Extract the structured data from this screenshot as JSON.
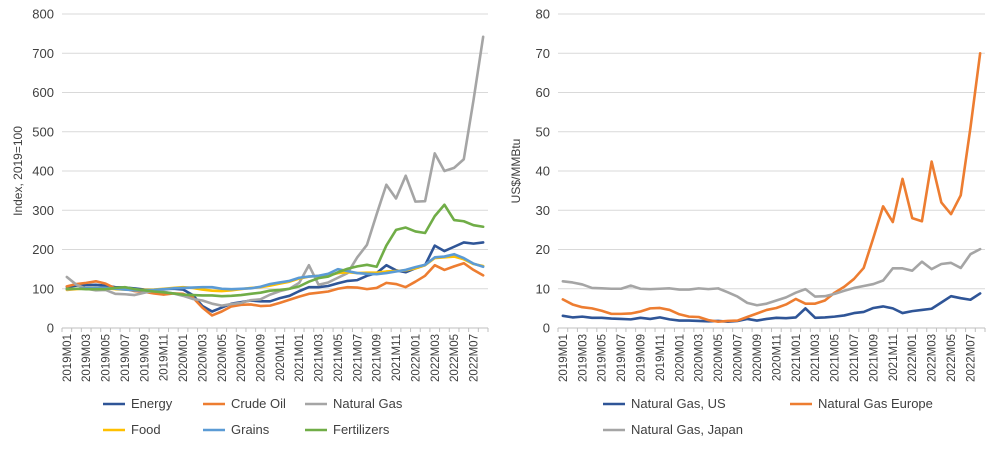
{
  "chart_data": [
    {
      "type": "line",
      "title": "",
      "xlabel": "",
      "ylabel": "Index, 2019=100",
      "ylim": [
        0,
        800
      ],
      "yticks": [
        0,
        100,
        200,
        300,
        400,
        500,
        600,
        700,
        800
      ],
      "grid": "horizontal",
      "legend_position": "bottom",
      "x": [
        "2019M01",
        "2019M02",
        "2019M03",
        "2019M04",
        "2019M05",
        "2019M06",
        "2019M07",
        "2019M08",
        "2019M09",
        "2019M10",
        "2019M11",
        "2019M12",
        "2020M01",
        "2020M02",
        "2020M03",
        "2020M04",
        "2020M05",
        "2020M06",
        "2020M07",
        "2020M08",
        "2020M09",
        "2020M10",
        "2020M11",
        "2020M12",
        "2021M01",
        "2021M02",
        "2021M03",
        "2021M04",
        "2021M05",
        "2021M06",
        "2021M07",
        "2021M08",
        "2021M09",
        "2021M10",
        "2021M11",
        "2021M12",
        "2022M01",
        "2022M02",
        "2022M03",
        "2022M04",
        "2022M05",
        "2022M06",
        "2022M07",
        "2022M08"
      ],
      "x_tick_labels": [
        "2019M01",
        "2019M03",
        "2019M05",
        "2019M07",
        "2019M09",
        "2019M11",
        "2020M01",
        "2020M03",
        "2020M05",
        "2020M07",
        "2020M09",
        "2020M11",
        "2021M01",
        "2021M03",
        "2021M05",
        "2021M07",
        "2021M09",
        "2021M11",
        "2022M01",
        "2022M03",
        "2022M05",
        "2022M07"
      ],
      "series": [
        {
          "name": "Energy",
          "color": "#2f5597",
          "values": [
            105,
            108,
            109,
            110,
            108,
            104,
            103,
            101,
            98,
            97,
            99,
            100,
            98,
            84,
            56,
            42,
            52,
            62,
            66,
            70,
            68,
            68,
            76,
            82,
            94,
            104,
            104,
            107,
            114,
            120,
            122,
            133,
            140,
            160,
            147,
            142,
            152,
            160,
            210,
            196,
            207,
            218,
            215,
            218
          ]
        },
        {
          "name": "Crude Oil",
          "color": "#ed7d31",
          "values": [
            106,
            112,
            115,
            119,
            113,
            101,
            100,
            94,
            92,
            88,
            85,
            88,
            87,
            78,
            52,
            32,
            42,
            55,
            59,
            60,
            56,
            57,
            64,
            72,
            80,
            87,
            90,
            93,
            100,
            104,
            103,
            99,
            102,
            115,
            112,
            104,
            118,
            133,
            160,
            148,
            157,
            165,
            148,
            134
          ]
        },
        {
          "name": "Natural Gas",
          "color": "#a5a5a5",
          "values": [
            130,
            110,
            100,
            96,
            97,
            87,
            86,
            84,
            90,
            95,
            92,
            88,
            82,
            74,
            70,
            62,
            57,
            61,
            64,
            71,
            73,
            85,
            94,
            100,
            115,
            160,
            110,
            116,
            128,
            140,
            180,
            212,
            290,
            365,
            330,
            388,
            322,
            323,
            445,
            400,
            408,
            430,
            580,
            742
          ]
        },
        {
          "name": "Food",
          "color": "#ffc000",
          "values": [
            97,
            99,
            101,
            102,
            101,
            99,
            98,
            97,
            97,
            98,
            100,
            102,
            104,
            102,
            98,
            95,
            94,
            96,
            99,
            102,
            104,
            108,
            113,
            118,
            126,
            131,
            133,
            134,
            140,
            142,
            140,
            141,
            141,
            144,
            145,
            147,
            152,
            160,
            178,
            180,
            182,
            175,
            163,
            158
          ]
        },
        {
          "name": "Grains",
          "color": "#5b9bd5",
          "values": [
            99,
            100,
            101,
            102,
            102,
            100,
            98,
            96,
            96,
            97,
            99,
            101,
            102,
            103,
            104,
            104,
            100,
            99,
            100,
            101,
            105,
            112,
            116,
            120,
            128,
            131,
            133,
            138,
            150,
            145,
            140,
            138,
            137,
            140,
            144,
            148,
            155,
            161,
            180,
            182,
            188,
            178,
            164,
            156
          ]
        },
        {
          "name": "Fertilizers",
          "color": "#70ad47",
          "values": [
            100,
            100,
            99,
            99,
            99,
            102,
            104,
            99,
            96,
            93,
            91,
            88,
            85,
            84,
            83,
            83,
            81,
            82,
            84,
            87,
            90,
            95,
            97,
            100,
            106,
            118,
            127,
            131,
            142,
            151,
            157,
            161,
            156,
            210,
            250,
            256,
            246,
            242,
            285,
            314,
            275,
            272,
            262,
            258
          ]
        }
      ]
    },
    {
      "type": "line",
      "title": "",
      "xlabel": "",
      "ylabel": "US$/MMBtu",
      "ylim": [
        0,
        80
      ],
      "yticks": [
        0,
        10,
        20,
        30,
        40,
        50,
        60,
        70,
        80
      ],
      "grid": "horizontal",
      "legend_position": "bottom",
      "x": [
        "2019M01",
        "2019M02",
        "2019M03",
        "2019M04",
        "2019M05",
        "2019M06",
        "2019M07",
        "2019M08",
        "2019M09",
        "2019M10",
        "2019M11",
        "2019M12",
        "2020M01",
        "2020M02",
        "2020M03",
        "2020M04",
        "2020M05",
        "2020M06",
        "2020M07",
        "2020M08",
        "2020M09",
        "2020M10",
        "2020M11",
        "2020M12",
        "2021M01",
        "2021M02",
        "2021M03",
        "2021M04",
        "2021M05",
        "2021M06",
        "2021M07",
        "2021M08",
        "2021M09",
        "2021M10",
        "2021M11",
        "2021M12",
        "2022M01",
        "2022M02",
        "2022M03",
        "2022M04",
        "2022M05",
        "2022M06",
        "2022M07",
        "2022M08"
      ],
      "x_tick_labels": [
        "2019M01",
        "2019M03",
        "2019M05",
        "2019M07",
        "2019M09",
        "2019M11",
        "2020M01",
        "2020M03",
        "2020M05",
        "2020M07",
        "2020M09",
        "2020M11",
        "2021M01",
        "2021M03",
        "2021M05",
        "2021M07",
        "2021M09",
        "2021M11",
        "2022M01",
        "2022M03",
        "2022M05",
        "2022M07"
      ],
      "series": [
        {
          "name": "Natural Gas, US",
          "color": "#2f5597",
          "values": [
            3.1,
            2.7,
            2.9,
            2.6,
            2.6,
            2.4,
            2.3,
            2.2,
            2.6,
            2.3,
            2.7,
            2.2,
            1.9,
            1.9,
            1.8,
            1.7,
            1.8,
            1.6,
            1.8,
            2.3,
            1.9,
            2.3,
            2.6,
            2.5,
            2.7,
            5.0,
            2.6,
            2.7,
            2.9,
            3.2,
            3.8,
            4.1,
            5.1,
            5.5,
            5.0,
            3.8,
            4.3,
            4.6,
            4.9,
            6.5,
            8.1,
            7.6,
            7.2,
            8.8
          ]
        },
        {
          "name": "Natural Gas Europe",
          "color": "#ed7d31",
          "values": [
            7.3,
            6.0,
            5.3,
            5.0,
            4.4,
            3.6,
            3.6,
            3.7,
            4.2,
            5.0,
            5.1,
            4.6,
            3.5,
            2.9,
            2.8,
            2.0,
            1.6,
            1.8,
            1.9,
            2.8,
            3.7,
            4.6,
            5.1,
            6.0,
            7.4,
            6.2,
            6.2,
            7.0,
            9.0,
            10.5,
            12.5,
            15.3,
            23.0,
            31.0,
            27.0,
            38.0,
            28.0,
            27.2,
            42.4,
            32.0,
            29.0,
            33.8,
            51.0,
            70.0
          ]
        },
        {
          "name": "Natural Gas, Japan",
          "color": "#a5a5a5",
          "values": [
            11.9,
            11.6,
            11.1,
            10.2,
            10.1,
            10.0,
            10.0,
            10.8,
            10.0,
            9.9,
            10.0,
            10.1,
            9.8,
            9.8,
            10.1,
            9.9,
            10.1,
            9.1,
            8.0,
            6.4,
            5.8,
            6.2,
            7.0,
            7.8,
            9.0,
            9.9,
            8.0,
            8.1,
            8.7,
            9.5,
            10.2,
            10.7,
            11.2,
            12.1,
            15.2,
            15.2,
            14.6,
            16.9,
            15.0,
            16.3,
            16.6,
            15.3,
            18.8,
            20.1
          ]
        }
      ]
    }
  ]
}
